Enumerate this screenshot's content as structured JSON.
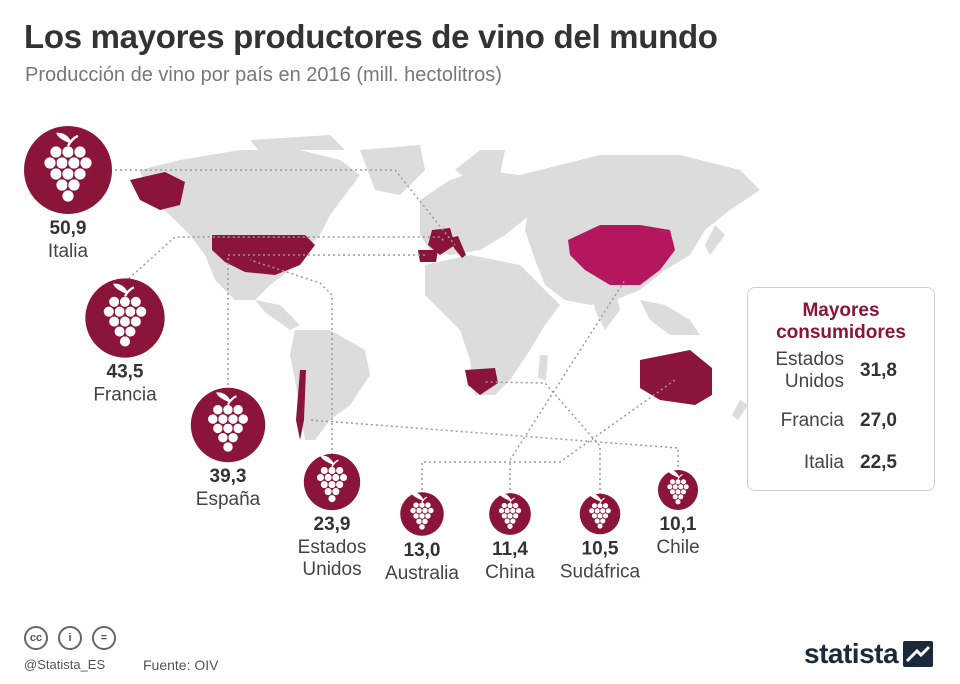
{
  "header": {
    "title": "Los mayores productores de vino del mundo",
    "subtitle": "Producción de vino por país en 2016 (mill. hectolitros)"
  },
  "chart_data": {
    "type": "bar",
    "categories": [
      "Italia",
      "Francia",
      "España",
      "Estados Unidos",
      "Australia",
      "China",
      "Sudáfrica",
      "Chile"
    ],
    "values": [
      50.9,
      43.5,
      39.3,
      23.9,
      13.0,
      11.4,
      10.5,
      10.1
    ],
    "value_labels": [
      "50,9",
      "43,5",
      "39,3",
      "23,9",
      "13,0",
      "11,4",
      "10,5",
      "10,1"
    ],
    "name_labels": [
      "Italia",
      "Francia",
      "España",
      "Estados\nUnidos",
      "Australia",
      "China",
      "Sudáfrica",
      "Chile"
    ]
  },
  "consumers": {
    "title": "Mayores consumidores",
    "rows": [
      {
        "country": "Estados Unidos",
        "value": "31,8"
      },
      {
        "country": "Francia",
        "value": "27,0"
      },
      {
        "country": "Italia",
        "value": "22,5"
      }
    ]
  },
  "footer": {
    "handle": "@Statista_ES",
    "source": "Fuente: OIV",
    "brand": "statista"
  },
  "colors": {
    "accent": "#8a1538",
    "highlight": "#b5175e",
    "map": "#dcdcdc"
  }
}
